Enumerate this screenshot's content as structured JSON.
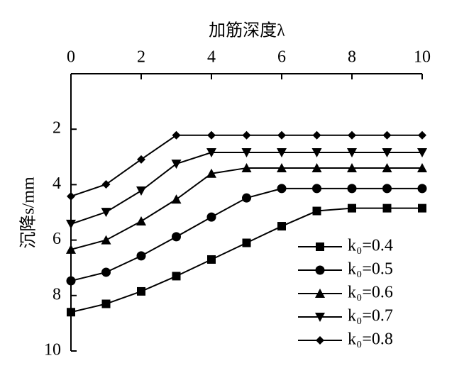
{
  "chart_data": {
    "type": "line",
    "x_label": "加筋深度λ",
    "y_label": "沉降s/mm",
    "x": [
      0,
      1,
      2,
      3,
      4,
      5,
      6,
      7,
      8,
      9,
      10
    ],
    "xlim": [
      0,
      10
    ],
    "xticks": [
      0,
      2,
      4,
      6,
      8,
      10
    ],
    "ylim": [
      0,
      10
    ],
    "yticks": [
      2,
      4,
      6,
      8,
      10
    ],
    "y_inverted": true,
    "legend": "lower right",
    "series": [
      {
        "name": "k₀=0.4",
        "color": "#000000",
        "marker": "square",
        "values": [
          8.6,
          8.3,
          7.85,
          7.3,
          6.7,
          6.1,
          5.5,
          4.95,
          4.85,
          4.85,
          4.85
        ]
      },
      {
        "name": "k₀=0.5",
        "color": "#000000",
        "marker": "circle",
        "values": [
          7.47,
          7.16,
          6.57,
          5.88,
          5.17,
          4.48,
          4.14,
          4.14,
          4.14,
          4.14,
          4.14
        ]
      },
      {
        "name": "k₀=0.6",
        "color": "#000000",
        "marker": "triangle-up",
        "values": [
          6.34,
          6.0,
          5.32,
          4.53,
          3.6,
          3.4,
          3.4,
          3.4,
          3.4,
          3.4,
          3.4
        ]
      },
      {
        "name": "k₀=0.7",
        "color": "#000000",
        "marker": "triangle-down",
        "values": [
          5.42,
          4.99,
          4.22,
          3.25,
          2.84,
          2.84,
          2.84,
          2.84,
          2.84,
          2.84,
          2.84
        ]
      },
      {
        "name": "k₀=0.8",
        "color": "#000000",
        "marker": "diamond",
        "values": [
          4.42,
          3.99,
          3.09,
          2.22,
          2.22,
          2.22,
          2.22,
          2.22,
          2.22,
          2.22,
          2.22
        ]
      }
    ]
  }
}
